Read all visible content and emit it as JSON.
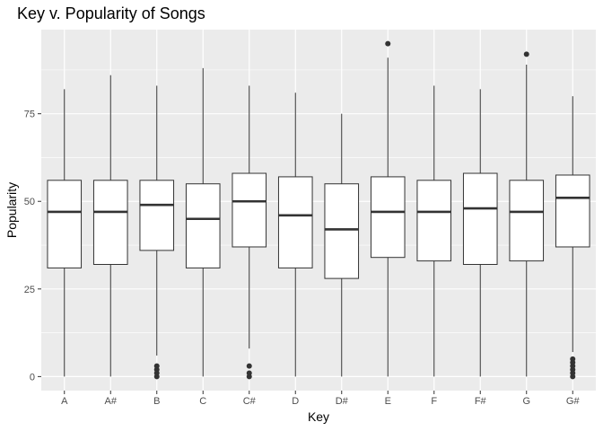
{
  "chart_data": {
    "type": "boxplot",
    "title": "Key v. Popularity of Songs",
    "xlabel": "Key",
    "ylabel": "Popularity",
    "ylim": [
      -4,
      99
    ],
    "yticks": [
      0,
      25,
      50,
      75
    ],
    "grid": true,
    "legend": "none",
    "colors": {
      "panel": "#ebebeb",
      "grid": "#ffffff",
      "box_fill": "#ffffff",
      "box_stroke": "#333333",
      "tick_text": "#4d4d4d"
    },
    "categories": [
      "A",
      "A#",
      "B",
      "C",
      "C#",
      "D",
      "D#",
      "E",
      "F",
      "F#",
      "G",
      "G#"
    ],
    "boxes": [
      {
        "key": "A",
        "min": 0,
        "q1": 31,
        "median": 47,
        "q3": 56,
        "max": 82,
        "outliers": []
      },
      {
        "key": "A#",
        "min": 0,
        "q1": 32,
        "median": 47,
        "q3": 56,
        "max": 86,
        "outliers": []
      },
      {
        "key": "B",
        "min": 6,
        "q1": 36,
        "median": 49,
        "q3": 56,
        "max": 83,
        "outliers": [
          0,
          1,
          2,
          3
        ]
      },
      {
        "key": "C",
        "min": 0,
        "q1": 31,
        "median": 45,
        "q3": 55,
        "max": 88,
        "outliers": []
      },
      {
        "key": "C#",
        "min": 8,
        "q1": 37,
        "median": 50,
        "q3": 58,
        "max": 83,
        "outliers": [
          0,
          1,
          3
        ]
      },
      {
        "key": "D",
        "min": 0,
        "q1": 31,
        "median": 46,
        "q3": 57,
        "max": 81,
        "outliers": []
      },
      {
        "key": "D#",
        "min": 0,
        "q1": 28,
        "median": 42,
        "q3": 55,
        "max": 75,
        "outliers": []
      },
      {
        "key": "E",
        "min": 0,
        "q1": 34,
        "median": 47,
        "q3": 57,
        "max": 91,
        "outliers": [
          95
        ]
      },
      {
        "key": "F",
        "min": 0,
        "q1": 33,
        "median": 47,
        "q3": 56,
        "max": 83,
        "outliers": []
      },
      {
        "key": "F#",
        "min": 0,
        "q1": 32,
        "median": 48,
        "q3": 58,
        "max": 82,
        "outliers": []
      },
      {
        "key": "G",
        "min": 0,
        "q1": 33,
        "median": 47,
        "q3": 56,
        "max": 89,
        "outliers": [
          92
        ]
      },
      {
        "key": "G#",
        "min": 7,
        "q1": 37,
        "median": 51,
        "q3": 57.5,
        "max": 80,
        "outliers": [
          0,
          1,
          2,
          3,
          4,
          5
        ]
      }
    ]
  }
}
